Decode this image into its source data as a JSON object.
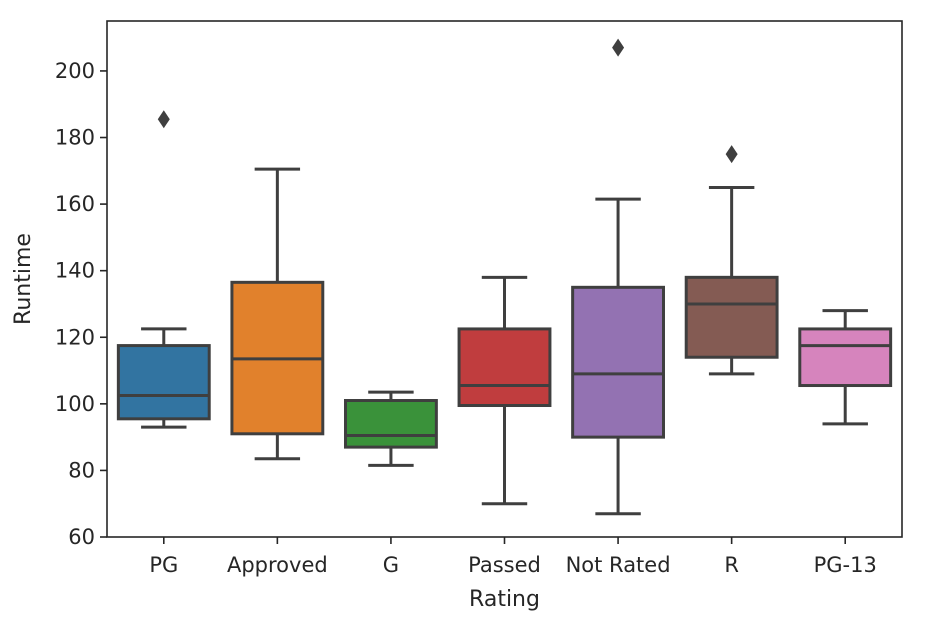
{
  "chart_data": {
    "type": "box",
    "xlabel": "Rating",
    "ylabel": "Runtime",
    "ylim": [
      60,
      215
    ],
    "yticks": [
      60,
      80,
      100,
      120,
      140,
      160,
      180,
      200
    ],
    "grid": false,
    "categories": [
      "PG",
      "Approved",
      "G",
      "Passed",
      "Not Rated",
      "R",
      "PG-13"
    ],
    "boxes": [
      {
        "category": "PG",
        "color": "#3274a1",
        "whisker_low": 93,
        "q1": 95.5,
        "median": 102.5,
        "q3": 117.5,
        "whisker_high": 122.5,
        "outliers": [
          185.5
        ]
      },
      {
        "category": "Approved",
        "color": "#e1812c",
        "whisker_low": 83.5,
        "q1": 91,
        "median": 113.5,
        "q3": 136.5,
        "whisker_high": 170.5,
        "outliers": []
      },
      {
        "category": "G",
        "color": "#3a923a",
        "whisker_low": 81.5,
        "q1": 87,
        "median": 90.5,
        "q3": 101,
        "whisker_high": 103.5,
        "outliers": []
      },
      {
        "category": "Passed",
        "color": "#c03d3e",
        "whisker_low": 70,
        "q1": 99.5,
        "median": 105.5,
        "q3": 122.5,
        "whisker_high": 138,
        "outliers": []
      },
      {
        "category": "Not Rated",
        "color": "#9372b2",
        "whisker_low": 67,
        "q1": 90,
        "median": 109,
        "q3": 135,
        "whisker_high": 161.5,
        "outliers": [
          207
        ]
      },
      {
        "category": "R",
        "color": "#845b53",
        "whisker_low": 109,
        "q1": 114,
        "median": 130,
        "q3": 138,
        "whisker_high": 165,
        "outliers": [
          175
        ]
      },
      {
        "category": "PG-13",
        "color": "#d684bd",
        "whisker_low": 94,
        "q1": 105.5,
        "median": 117.5,
        "q3": 122.5,
        "whisker_high": 128,
        "outliers": []
      }
    ]
  }
}
